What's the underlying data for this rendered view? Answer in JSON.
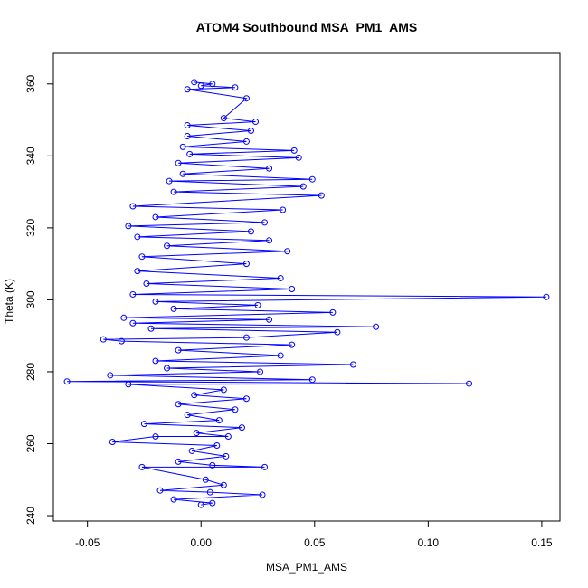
{
  "chart_data": {
    "type": "line",
    "title": "ATOM4 Southbound MSA_PM1_AMS",
    "xlabel": "MSA_PM1_AMS",
    "ylabel": "Theta (K)",
    "xlim": [
      -0.065,
      0.158
    ],
    "ylim": [
      238.5,
      368.5
    ],
    "x_ticks": [
      -0.05,
      0.0,
      0.05,
      0.1,
      0.15
    ],
    "x_tick_labels": [
      "-0.05",
      "0.00",
      "0.05",
      "0.10",
      "0.15"
    ],
    "y_ticks": [
      240,
      260,
      280,
      300,
      320,
      340,
      360
    ],
    "y_tick_labels": [
      "240",
      "260",
      "280",
      "300",
      "320",
      "340",
      "360"
    ],
    "series_color": "#0000ff",
    "marker": "open-circle",
    "series": [
      {
        "name": "MSA_PM1_AMS vs Theta",
        "points": [
          [
            0.0,
            243.0
          ],
          [
            0.005,
            243.5
          ],
          [
            -0.012,
            244.5
          ],
          [
            0.027,
            245.8
          ],
          [
            0.004,
            246.5
          ],
          [
            -0.018,
            247.0
          ],
          [
            0.01,
            248.5
          ],
          [
            0.002,
            250.0
          ],
          [
            -0.026,
            253.5
          ],
          [
            0.028,
            253.5
          ],
          [
            0.005,
            254.0
          ],
          [
            -0.01,
            255.0
          ],
          [
            0.011,
            256.5
          ],
          [
            -0.004,
            258.0
          ],
          [
            0.007,
            259.5
          ],
          [
            -0.039,
            260.5
          ],
          [
            -0.02,
            262.0
          ],
          [
            0.012,
            262.0
          ],
          [
            -0.002,
            263.0
          ],
          [
            0.018,
            264.5
          ],
          [
            -0.025,
            265.5
          ],
          [
            0.008,
            266.5
          ],
          [
            -0.006,
            268.0
          ],
          [
            0.015,
            269.5
          ],
          [
            -0.01,
            271.0
          ],
          [
            0.02,
            272.5
          ],
          [
            -0.003,
            273.5
          ],
          [
            0.01,
            275.0
          ],
          [
            -0.032,
            276.5
          ],
          [
            0.118,
            276.7
          ],
          [
            -0.059,
            277.3
          ],
          [
            0.049,
            277.8
          ],
          [
            -0.04,
            279.0
          ],
          [
            0.026,
            280.0
          ],
          [
            -0.015,
            281.0
          ],
          [
            0.067,
            282.0
          ],
          [
            -0.02,
            283.0
          ],
          [
            0.035,
            284.5
          ],
          [
            -0.01,
            286.0
          ],
          [
            0.04,
            287.5
          ],
          [
            -0.035,
            288.5
          ],
          [
            0.02,
            289.5
          ],
          [
            -0.043,
            289.0
          ],
          [
            0.06,
            291.0
          ],
          [
            -0.022,
            292.0
          ],
          [
            0.077,
            292.5
          ],
          [
            -0.03,
            293.5
          ],
          [
            0.03,
            294.5
          ],
          [
            -0.034,
            295.0
          ],
          [
            0.058,
            296.5
          ],
          [
            -0.012,
            297.5
          ],
          [
            0.025,
            298.5
          ],
          [
            -0.02,
            299.5
          ],
          [
            0.152,
            300.8
          ],
          [
            -0.03,
            301.5
          ],
          [
            0.04,
            303.0
          ],
          [
            -0.024,
            304.5
          ],
          [
            0.035,
            306.0
          ],
          [
            -0.028,
            308.0
          ],
          [
            0.02,
            310.0
          ],
          [
            -0.026,
            312.0
          ],
          [
            0.038,
            313.5
          ],
          [
            -0.015,
            315.0
          ],
          [
            0.03,
            316.5
          ],
          [
            -0.028,
            317.5
          ],
          [
            0.022,
            319.0
          ],
          [
            -0.032,
            320.5
          ],
          [
            0.028,
            321.5
          ],
          [
            -0.02,
            323.0
          ],
          [
            0.036,
            325.0
          ],
          [
            -0.03,
            326.0
          ],
          [
            0.053,
            329.0
          ],
          [
            -0.012,
            330.0
          ],
          [
            0.045,
            331.5
          ],
          [
            -0.014,
            333.0
          ],
          [
            0.049,
            333.5
          ],
          [
            -0.008,
            335.0
          ],
          [
            0.03,
            336.5
          ],
          [
            -0.01,
            338.0
          ],
          [
            0.043,
            339.5
          ],
          [
            -0.005,
            340.5
          ],
          [
            0.041,
            341.5
          ],
          [
            -0.008,
            342.5
          ],
          [
            0.02,
            344.0
          ],
          [
            -0.006,
            345.5
          ],
          [
            0.022,
            347.0
          ],
          [
            -0.006,
            348.5
          ],
          [
            0.024,
            349.5
          ],
          [
            0.01,
            350.5
          ],
          [
            0.02,
            356.0
          ],
          [
            -0.006,
            358.5
          ],
          [
            0.015,
            359.0
          ],
          [
            0.0,
            359.5
          ],
          [
            0.005,
            360.0
          ],
          [
            -0.003,
            360.5
          ]
        ]
      }
    ]
  }
}
